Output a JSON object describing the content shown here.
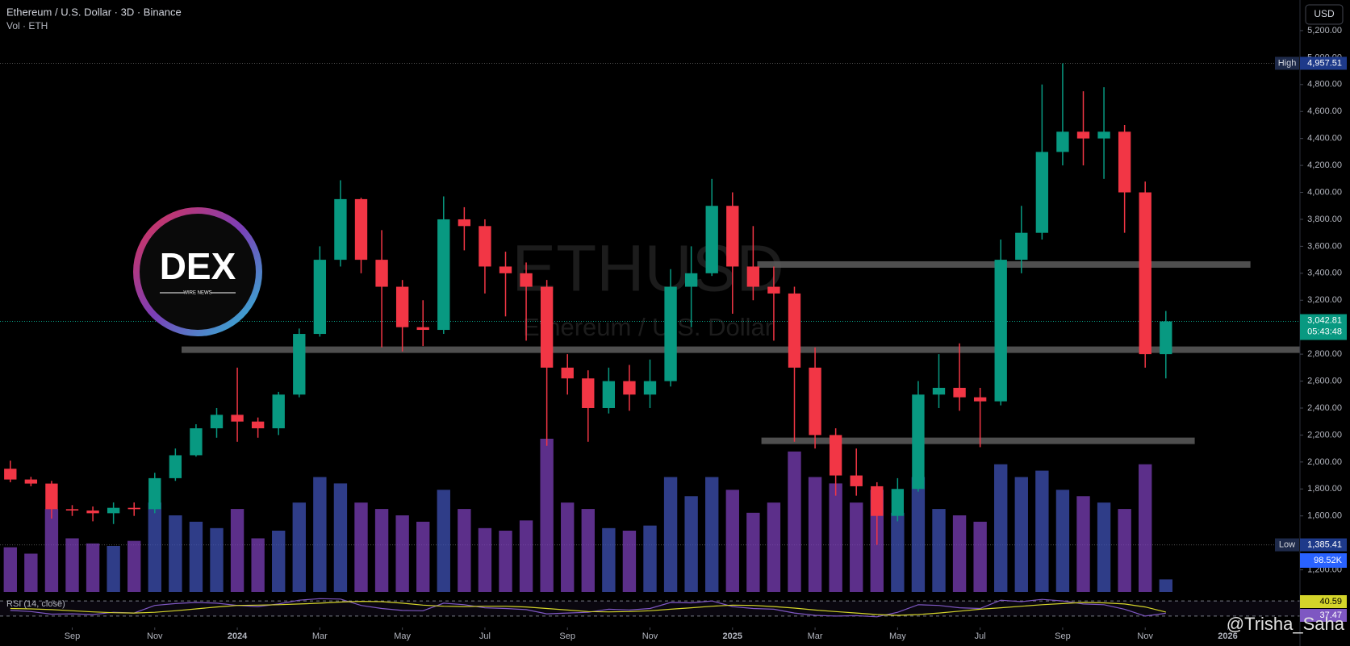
{
  "header": {
    "title": "Ethereum / U.S. Dollar · 3D · Binance",
    "currency": "USD",
    "watermark_symbol": "ETHUSD",
    "watermark_name": "Ethereum / U.S. Dollar",
    "credit": "@Trisha_Saha"
  },
  "logo": {
    "text": "DEX",
    "subtext": "WIRE NEWS"
  },
  "chart_data": {
    "type": "candlestick",
    "up_color": "#089981",
    "down_color": "#f23645",
    "open": [
      1950,
      1870,
      1840,
      1650,
      1640,
      1620,
      1660,
      1650,
      1880,
      2050,
      2250,
      2350,
      2300,
      2250,
      2500,
      2950,
      3500,
      3950,
      3500,
      3300,
      3000,
      2980,
      3800,
      3750,
      3450,
      3400,
      3300,
      2700,
      2620,
      2400,
      2600,
      2500,
      2600,
      3300,
      3400,
      3900,
      3450,
      3300,
      3250,
      2700,
      2200,
      1900,
      1820,
      1600,
      1800,
      2500,
      2550,
      2480,
      2450,
      3500,
      3700,
      4300,
      4450,
      4400,
      4450,
      4000,
      2800
    ],
    "high": [
      2010,
      1890,
      1860,
      1680,
      1670,
      1700,
      1700,
      1920,
      2100,
      2280,
      2400,
      2700,
      2330,
      2520,
      2990,
      3600,
      4090,
      3960,
      3720,
      3350,
      3200,
      3970,
      3890,
      3800,
      3560,
      3480,
      3350,
      2800,
      2680,
      2700,
      2720,
      2760,
      3430,
      3600,
      4100,
      4000,
      3750,
      3450,
      3300,
      2850,
      2250,
      2100,
      1850,
      1880,
      2600,
      2800,
      2880,
      2550,
      3650,
      3900,
      4800,
      4957.51,
      4750,
      4780,
      4500,
      4080,
      3120
    ],
    "low": [
      1850,
      1820,
      1580,
      1600,
      1560,
      1540,
      1600,
      1620,
      1860,
      2040,
      2180,
      2150,
      2180,
      2200,
      2480,
      2930,
      3450,
      3400,
      2850,
      2820,
      2860,
      2950,
      3570,
      3250,
      3080,
      2900,
      2120,
      2500,
      2150,
      2360,
      2380,
      2400,
      2560,
      3000,
      3380,
      3100,
      3200,
      2900,
      2150,
      2100,
      1750,
      1750,
      1385.41,
      1560,
      1780,
      2400,
      2380,
      2110,
      2420,
      3400,
      3650,
      4200,
      4200,
      4100,
      3700,
      2700,
      2620
    ],
    "close": [
      1870,
      1840,
      1650,
      1640,
      1620,
      1660,
      1650,
      1880,
      2050,
      2250,
      2350,
      2300,
      2250,
      2500,
      2950,
      3500,
      3950,
      3500,
      3300,
      3000,
      2980,
      3800,
      3750,
      3450,
      3400,
      3300,
      2700,
      2620,
      2400,
      2600,
      2500,
      2600,
      3300,
      3400,
      3900,
      3450,
      3300,
      3250,
      2700,
      2200,
      1900,
      1820,
      1600,
      1800,
      2500,
      2550,
      2480,
      2450,
      3500,
      3700,
      4300,
      4450,
      4400,
      4450,
      4000,
      2800,
      3042.81
    ],
    "xlim": [
      0,
      63
    ],
    "xticks": [
      {
        "value": 3.5,
        "label": "Sep"
      },
      {
        "value": 7.5,
        "label": "Nov"
      },
      {
        "value": 11.5,
        "label": "2024"
      },
      {
        "value": 15.5,
        "label": "Mar"
      },
      {
        "value": 19.5,
        "label": "May"
      },
      {
        "value": 23.5,
        "label": "Jul"
      },
      {
        "value": 27.5,
        "label": "Sep"
      },
      {
        "value": 31.5,
        "label": "Nov"
      },
      {
        "value": 35.5,
        "label": "2025"
      },
      {
        "value": 39.5,
        "label": "Mar"
      },
      {
        "value": 43.5,
        "label": "May"
      },
      {
        "value": 47.5,
        "label": "Jul"
      },
      {
        "value": 51.5,
        "label": "Sep"
      },
      {
        "value": 55.5,
        "label": "Nov"
      },
      {
        "value": 59.5,
        "label": "2026"
      }
    ],
    "ylim": [
      1000,
      5427
    ],
    "yticks": [
      {
        "value": 1200,
        "label": "1,200.00"
      },
      {
        "value": 1400,
        "label": "1,400.00"
      },
      {
        "value": 1600,
        "label": "1,600.00"
      },
      {
        "value": 1800,
        "label": "1,800.00"
      },
      {
        "value": 2000,
        "label": "2,000.00"
      },
      {
        "value": 2200,
        "label": "2,200.00"
      },
      {
        "value": 2400,
        "label": "2,400.00"
      },
      {
        "value": 2600,
        "label": "2,600.00"
      },
      {
        "value": 2800,
        "label": "2,800.00"
      },
      {
        "value": 3000,
        "label": "3,000.00"
      },
      {
        "value": 3200,
        "label": "3,200.00"
      },
      {
        "value": 3400,
        "label": "3,400.00"
      },
      {
        "value": 3600,
        "label": "3,600.00"
      },
      {
        "value": 3800,
        "label": "3,800.00"
      },
      {
        "value": 4000,
        "label": "4,000.00"
      },
      {
        "value": 4200,
        "label": "4,200.00"
      },
      {
        "value": 4400,
        "label": "4,400.00"
      },
      {
        "value": 4600,
        "label": "4,600.00"
      },
      {
        "value": 4800,
        "label": "4,800.00"
      },
      {
        "value": 5000,
        "label": "5,000.00"
      },
      {
        "value": 5200,
        "label": "5,200.00"
      }
    ],
    "price_labels": [
      {
        "name": "High",
        "value": 4957.51,
        "label": "4,957.51"
      },
      {
        "name": "Low",
        "value": 1385.41,
        "label": "1,385.41"
      }
    ],
    "last_price": {
      "value": 3042.81,
      "label": "3,042.81",
      "countdown": "05:43:48"
    },
    "levels": [
      {
        "price": 2833,
        "from": 8.8,
        "to": 63
      },
      {
        "price": 3465,
        "from": 36.7,
        "to": 60.6
      },
      {
        "price": 2157,
        "from": 36.9,
        "to": 57.9
      }
    ],
    "volume": {
      "title": "Vol · ETH",
      "up_color": "#3f51b5",
      "down_color": "#7b3fb8",
      "values": [
        350,
        300,
        650,
        420,
        380,
        360,
        400,
        700,
        600,
        550,
        500,
        650,
        420,
        480,
        700,
        900,
        850,
        700,
        650,
        600,
        550,
        800,
        650,
        500,
        480,
        560,
        1200,
        700,
        650,
        500,
        480,
        520,
        900,
        750,
        900,
        800,
        620,
        700,
        1100,
        900,
        850,
        700,
        800,
        620,
        900,
        650,
        600,
        550,
        1000,
        900,
        950,
        800,
        750,
        700,
        650,
        1000,
        98.52
      ],
      "value_labels": [
        null,
        null,
        null,
        null,
        null,
        null,
        null,
        null,
        null,
        null,
        null,
        null,
        null,
        null,
        null,
        null,
        null,
        null,
        null,
        null,
        null,
        null,
        null,
        null,
        null,
        null,
        null,
        null,
        null,
        null,
        null,
        null,
        null,
        null,
        null,
        null,
        null,
        null,
        null,
        null,
        null,
        null,
        null,
        null,
        null,
        null,
        null,
        null,
        null,
        null,
        null,
        null,
        null,
        null,
        null,
        null,
        "98.52K"
      ]
    },
    "rsi": {
      "title": "RSI (14, close)",
      "ylim": [
        0,
        100
      ],
      "bands": [
        70,
        30
      ],
      "series": [
        {
          "name": "RSI",
          "color": "#7e57c2",
          "values": [
            45,
            42,
            35,
            36,
            34,
            40,
            38,
            58,
            63,
            66,
            64,
            58,
            55,
            62,
            72,
            76,
            75,
            58,
            50,
            45,
            44,
            64,
            60,
            52,
            50,
            47,
            36,
            38,
            40,
            48,
            46,
            50,
            66,
            65,
            70,
            55,
            50,
            48,
            38,
            32,
            30,
            31,
            28,
            40,
            60,
            58,
            52,
            50,
            72,
            68,
            74,
            70,
            62,
            60,
            48,
            30,
            37.47
          ]
        },
        {
          "name": "RSI MA",
          "color": "#d4d42a",
          "values": [
            50,
            49,
            47,
            44,
            41,
            39,
            38,
            40,
            44,
            49,
            54,
            58,
            59,
            60,
            62,
            64,
            67,
            69,
            68,
            64,
            59,
            56,
            55,
            56,
            56,
            54,
            50,
            46,
            42,
            41,
            42,
            44,
            48,
            52,
            56,
            59,
            58,
            55,
            51,
            46,
            42,
            38,
            34,
            32,
            34,
            38,
            43,
            48,
            52,
            56,
            60,
            63,
            66,
            65,
            62,
            54,
            40.59
          ]
        }
      ]
    }
  }
}
